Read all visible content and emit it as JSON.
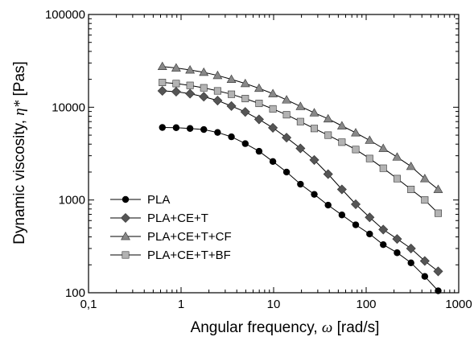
{
  "chart_data": {
    "type": "line",
    "title": "",
    "xlabel": "Angular frequency, ",
    "xlabel_symbol": "ω",
    "xlabel_unit": " [rad/s]",
    "ylabel": "Dynamic viscosity, ",
    "ylabel_symbol": "η*",
    "ylabel_unit": " [Pas]",
    "xscale": "log",
    "yscale": "log",
    "xlim": [
      0.1,
      1000
    ],
    "ylim": [
      100,
      100000
    ],
    "xticks": [
      0.1,
      1,
      10,
      100,
      1000
    ],
    "xtick_labels": [
      "0,1",
      "1",
      "10",
      "100",
      "1000"
    ],
    "yticks": [
      100,
      1000,
      10000,
      100000
    ],
    "ytick_labels": [
      "100",
      "1000",
      "10000",
      "100000"
    ],
    "grid": false,
    "legend_position": "bottom-left",
    "x": [
      0.628,
      0.885,
      1.25,
      1.76,
      2.48,
      3.5,
      4.94,
      6.96,
      9.82,
      13.8,
      19.5,
      27.5,
      38.8,
      54.7,
      77.1,
      109,
      153,
      216,
      305,
      430,
      600
    ],
    "series": [
      {
        "name": "PLA",
        "marker": "circle",
        "color": "#000000",
        "values": [
          6050,
          6020,
          5900,
          5750,
          5350,
          4800,
          4050,
          3350,
          2600,
          2000,
          1480,
          1150,
          880,
          690,
          540,
          430,
          330,
          270,
          210,
          150,
          105
        ]
      },
      {
        "name": "PLA+CE+T",
        "marker": "diamond",
        "color": "#555555",
        "values": [
          15000,
          14700,
          14000,
          13000,
          11800,
          10300,
          8900,
          7400,
          6000,
          4700,
          3600,
          2700,
          1900,
          1300,
          900,
          650,
          480,
          380,
          300,
          220,
          170
        ]
      },
      {
        "name": "PLA+CE+T+CF",
        "marker": "triangle",
        "color": "#888888",
        "values": [
          27500,
          26500,
          25200,
          23800,
          22000,
          20000,
          18000,
          16000,
          14000,
          12000,
          10200,
          8700,
          7500,
          6300,
          5300,
          4400,
          3600,
          2900,
          2300,
          1700,
          1300
        ]
      },
      {
        "name": "PLA+CE+T+BF",
        "marker": "square",
        "color": "#b3b3b3",
        "values": [
          18500,
          18000,
          17200,
          16200,
          15000,
          13800,
          12400,
          11000,
          9600,
          8300,
          7000,
          5900,
          5000,
          4200,
          3500,
          2800,
          2200,
          1700,
          1300,
          1000,
          720
        ]
      }
    ]
  }
}
